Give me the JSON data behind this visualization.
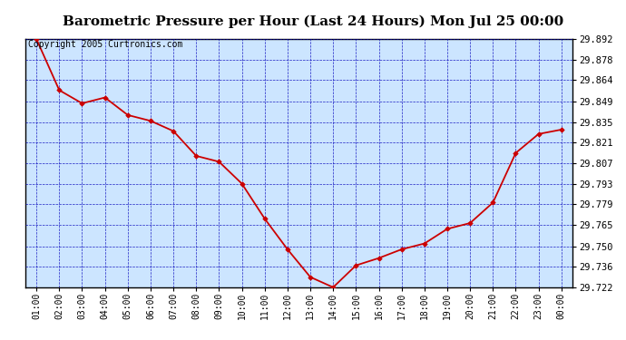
{
  "title": "Barometric Pressure per Hour (Last 24 Hours) Mon Jul 25 00:00",
  "copyright": "Copyright 2005 Curtronics.com",
  "x_labels": [
    "01:00",
    "02:00",
    "03:00",
    "04:00",
    "05:00",
    "06:00",
    "07:00",
    "08:00",
    "09:00",
    "10:00",
    "11:00",
    "12:00",
    "13:00",
    "14:00",
    "15:00",
    "16:00",
    "17:00",
    "18:00",
    "19:00",
    "20:00",
    "21:00",
    "22:00",
    "23:00",
    "00:00"
  ],
  "y_values": [
    29.892,
    29.857,
    29.848,
    29.852,
    29.84,
    29.836,
    29.829,
    29.812,
    29.808,
    29.793,
    29.769,
    29.748,
    29.729,
    29.722,
    29.737,
    29.742,
    29.748,
    29.752,
    29.762,
    29.766,
    29.78,
    29.814,
    29.827,
    29.83
  ],
  "ylim_min": 29.722,
  "ylim_max": 29.892,
  "y_ticks": [
    29.722,
    29.736,
    29.75,
    29.765,
    29.779,
    29.793,
    29.807,
    29.821,
    29.835,
    29.849,
    29.864,
    29.878,
    29.892
  ],
  "line_color": "#cc0000",
  "marker_color": "#cc0000",
  "bg_color": "#cce5ff",
  "fig_bg_color": "#ffffff",
  "grid_color": "#0000bb",
  "title_color": "#000000",
  "title_fontsize": 11,
  "copyright_fontsize": 7,
  "tick_fontsize": 7.5,
  "x_tick_fontsize": 7
}
